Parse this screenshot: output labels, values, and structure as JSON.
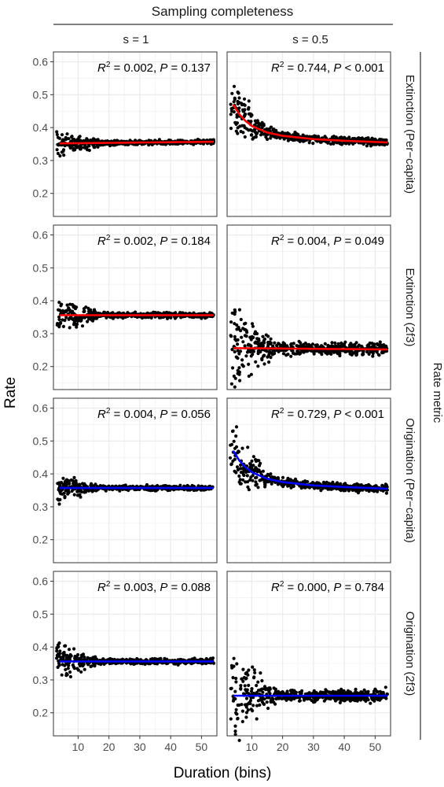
{
  "figure": {
    "top_header": "Sampling completeness",
    "y_axis_label": "Rate",
    "x_axis_label": "Duration (bins)",
    "right_header": "Rate metric",
    "columns": [
      "s = 1",
      "s = 0.5"
    ],
    "rows": [
      "Extinction (Per−capita)",
      "Extinction (2f3)",
      "Origination (Per−capita)",
      "Origination (2f3)"
    ]
  },
  "colors": {
    "extinction": "#ff0000",
    "origination": "#0000ff",
    "points": "#000000",
    "panel_border": "#333333",
    "grid": "#ebebeb"
  },
  "chart_data": [
    {
      "type": "scatter",
      "row": "Extinction (Per−capita)",
      "column": "s = 1",
      "annotation": {
        "r2": "0.002",
        "p_op": "=",
        "p": "0.137"
      },
      "x_range": [
        3,
        54
      ],
      "spread": [
        0.035,
        0.006
      ],
      "fit": {
        "color": "extinction",
        "x": [
          4,
          54
        ],
        "y": [
          0.352,
          0.357
        ]
      },
      "xlim": [
        2,
        55
      ],
      "ylim": [
        0.13,
        0.63
      ],
      "grid": true,
      "xticks": [
        10,
        20,
        30,
        40,
        50
      ],
      "yticks": [
        0.2,
        0.3,
        0.4,
        0.5,
        0.6
      ]
    },
    {
      "type": "scatter",
      "row": "Extinction (Per−capita)",
      "column": "s = 0.5",
      "annotation": {
        "r2": "0.744",
        "p_op": "<",
        "p": "0.001"
      },
      "x_range": [
        3,
        54
      ],
      "spread": [
        0.07,
        0.01
      ],
      "fit": {
        "color": "extinction",
        "x": [
          4,
          6,
          8,
          10,
          15,
          20,
          30,
          40,
          54
        ],
        "y": [
          0.47,
          0.44,
          0.42,
          0.405,
          0.385,
          0.375,
          0.365,
          0.36,
          0.355
        ]
      },
      "xlim": [
        2,
        55
      ],
      "ylim": [
        0.13,
        0.63
      ],
      "grid": true,
      "xticks": [
        10,
        20,
        30,
        40,
        50
      ],
      "yticks": [
        0.2,
        0.3,
        0.4,
        0.5,
        0.6
      ]
    },
    {
      "type": "scatter",
      "row": "Extinction (2f3)",
      "column": "s = 1",
      "annotation": {
        "r2": "0.002",
        "p_op": "=",
        "p": "0.184"
      },
      "x_range": [
        3,
        54
      ],
      "spread": [
        0.04,
        0.007
      ],
      "fit": {
        "color": "extinction",
        "x": [
          4,
          54
        ],
        "y": [
          0.356,
          0.356
        ]
      },
      "xlim": [
        2,
        55
      ],
      "ylim": [
        0.13,
        0.63
      ],
      "grid": true,
      "xticks": [
        10,
        20,
        30,
        40,
        50
      ],
      "yticks": [
        0.2,
        0.3,
        0.4,
        0.5,
        0.6
      ]
    },
    {
      "type": "scatter",
      "row": "Extinction (2f3)",
      "column": "s = 0.5",
      "annotation": {
        "r2": "0.004",
        "p_op": "=",
        "p": "0.049"
      },
      "x_range": [
        3,
        54
      ],
      "spread": [
        0.11,
        0.015
      ],
      "fit": {
        "color": "extinction",
        "x": [
          4,
          54
        ],
        "y": [
          0.256,
          0.252
        ]
      },
      "xlim": [
        2,
        55
      ],
      "ylim": [
        0.13,
        0.63
      ],
      "grid": true,
      "xticks": [
        10,
        20,
        30,
        40,
        50
      ],
      "yticks": [
        0.2,
        0.3,
        0.4,
        0.5,
        0.6
      ]
    },
    {
      "type": "scatter",
      "row": "Origination (Per−capita)",
      "column": "s = 1",
      "annotation": {
        "r2": "0.004",
        "p_op": "=",
        "p": "0.056"
      },
      "x_range": [
        3,
        54
      ],
      "spread": [
        0.035,
        0.006
      ],
      "fit": {
        "color": "origination",
        "x": [
          4,
          54
        ],
        "y": [
          0.357,
          0.357
        ]
      },
      "xlim": [
        2,
        55
      ],
      "ylim": [
        0.13,
        0.63
      ],
      "grid": true,
      "xticks": [
        10,
        20,
        30,
        40,
        50
      ],
      "yticks": [
        0.2,
        0.3,
        0.4,
        0.5,
        0.6
      ]
    },
    {
      "type": "scatter",
      "row": "Origination (Per−capita)",
      "column": "s = 0.5",
      "annotation": {
        "r2": "0.729",
        "p_op": "<",
        "p": "0.001"
      },
      "x_range": [
        3,
        54
      ],
      "spread": [
        0.07,
        0.01
      ],
      "fit": {
        "color": "origination",
        "x": [
          4,
          6,
          8,
          10,
          15,
          20,
          30,
          40,
          54
        ],
        "y": [
          0.47,
          0.44,
          0.42,
          0.405,
          0.385,
          0.375,
          0.365,
          0.36,
          0.355
        ]
      },
      "xlim": [
        2,
        55
      ],
      "ylim": [
        0.13,
        0.63
      ],
      "grid": true,
      "xticks": [
        10,
        20,
        30,
        40,
        50
      ],
      "yticks": [
        0.2,
        0.3,
        0.4,
        0.5,
        0.6
      ]
    },
    {
      "type": "scatter",
      "row": "Origination (2f3)",
      "column": "s = 1",
      "annotation": {
        "r2": "0.003",
        "p_op": "=",
        "p": "0.088"
      },
      "x_range": [
        3,
        54
      ],
      "spread": [
        0.045,
        0.007
      ],
      "fit": {
        "color": "origination",
        "x": [
          4,
          54
        ],
        "y": [
          0.356,
          0.356
        ]
      },
      "xlim": [
        2,
        55
      ],
      "ylim": [
        0.13,
        0.63
      ],
      "grid": true,
      "xticks": [
        10,
        20,
        30,
        40,
        50
      ],
      "yticks": [
        0.2,
        0.3,
        0.4,
        0.5,
        0.6
      ]
    },
    {
      "type": "scatter",
      "row": "Origination (2f3)",
      "column": "s = 0.5",
      "annotation": {
        "r2": "0.000",
        "p_op": "=",
        "p": "0.784"
      },
      "x_range": [
        3,
        54
      ],
      "spread": [
        0.11,
        0.015
      ],
      "fit": {
        "color": "origination",
        "x": [
          4,
          54
        ],
        "y": [
          0.252,
          0.252
        ]
      },
      "xlim": [
        2,
        55
      ],
      "ylim": [
        0.13,
        0.63
      ],
      "grid": true,
      "xticks": [
        10,
        20,
        30,
        40,
        50
      ],
      "yticks": [
        0.2,
        0.3,
        0.4,
        0.5,
        0.6
      ]
    }
  ]
}
